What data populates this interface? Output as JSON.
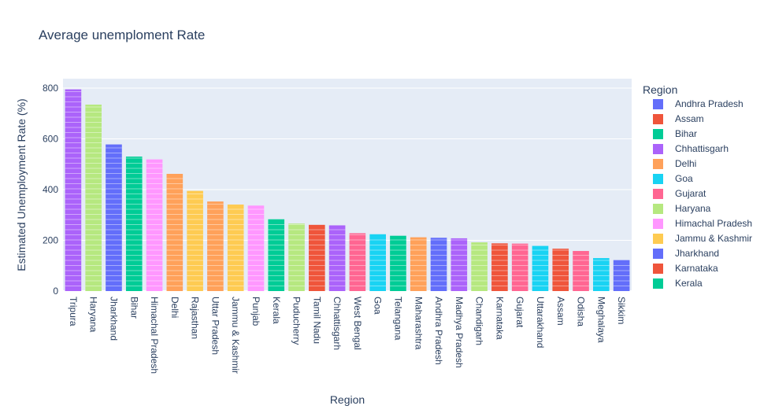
{
  "chart_data": {
    "type": "bar",
    "title": "Average unemploment Rate",
    "xlabel": "Region",
    "ylabel": "Estimated Unemployment Rate (%)",
    "ylim": [
      0,
      820
    ],
    "yticks": [
      0,
      200,
      400,
      600,
      800
    ],
    "grid": true,
    "legend_title": "Region",
    "legend_position": "right",
    "categories": [
      "Tripura",
      "Haryana",
      "Jharkhand",
      "Bihar",
      "Himachal Pradesh",
      "Delhi",
      "Rajasthan",
      "Uttar Pradesh",
      "Jammu & Kashmir",
      "Punjab",
      "Kerala",
      "Puducherry",
      "Tamil Nadu",
      "Chhattisgarh",
      "West Bengal",
      "Goa",
      "Telangana",
      "Maharashtra",
      "Andhra Pradesh",
      "Madhya Pradesh",
      "Chandigarh",
      "Karnataka",
      "Gujarat",
      "Uttarakhand",
      "Assam",
      "Odisha",
      "Meghalaya",
      "Sikkim"
    ],
    "values": [
      795,
      735,
      578,
      530,
      519,
      462,
      395,
      353,
      341,
      337,
      283,
      266,
      261,
      259,
      228,
      224,
      218,
      212,
      210,
      208,
      192,
      188,
      187,
      178,
      167,
      158,
      130,
      122
    ],
    "bar_colors": [
      "#AB63FA",
      "#B6E880",
      "#636EFA",
      "#00CC96",
      "#FF97FF",
      "#FFA15A",
      "#FECB52",
      "#FFA15A",
      "#FECB52",
      "#FF97FF",
      "#00CC96",
      "#B6E880",
      "#EF553B",
      "#AB63FA",
      "#FF6692",
      "#19D3F3",
      "#00CC96",
      "#FFA15A",
      "#636EFA",
      "#AB63FA",
      "#B6E880",
      "#EF553B",
      "#FF6692",
      "#19D3F3",
      "#EF553B",
      "#FF6692",
      "#19D3F3",
      "#636EFA"
    ],
    "legend": [
      {
        "label": "Andhra Pradesh",
        "color": "#636EFA"
      },
      {
        "label": "Assam",
        "color": "#EF553B"
      },
      {
        "label": "Bihar",
        "color": "#00CC96"
      },
      {
        "label": "Chhattisgarh",
        "color": "#AB63FA"
      },
      {
        "label": "Delhi",
        "color": "#FFA15A"
      },
      {
        "label": "Goa",
        "color": "#19D3F3"
      },
      {
        "label": "Gujarat",
        "color": "#FF6692"
      },
      {
        "label": "Haryana",
        "color": "#B6E880"
      },
      {
        "label": "Himachal Pradesh",
        "color": "#FF97FF"
      },
      {
        "label": "Jammu & Kashmir",
        "color": "#FECB52"
      },
      {
        "label": "Jharkhand",
        "color": "#636EFA"
      },
      {
        "label": "Karnataka",
        "color": "#EF553B"
      },
      {
        "label": "Kerala",
        "color": "#00CC96"
      }
    ]
  }
}
